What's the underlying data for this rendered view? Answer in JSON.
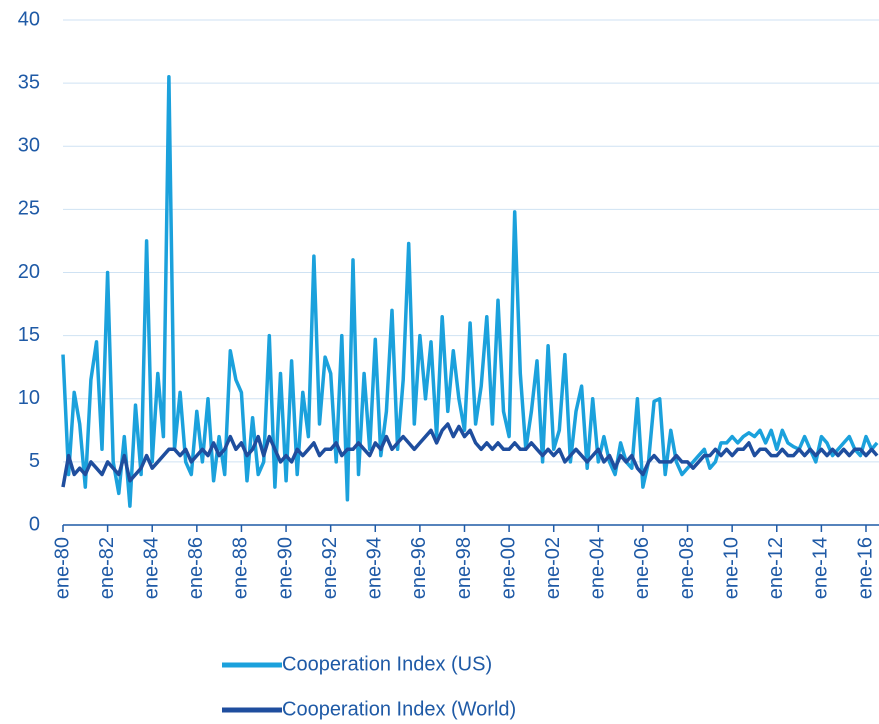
{
  "chart_data": {
    "type": "line",
    "x": [
      "1980-01",
      "1980-04",
      "1980-07",
      "1980-10",
      "1981-01",
      "1981-04",
      "1981-07",
      "1981-10",
      "1982-01",
      "1982-04",
      "1982-07",
      "1982-10",
      "1983-01",
      "1983-04",
      "1983-07",
      "1983-10",
      "1984-01",
      "1984-04",
      "1984-07",
      "1984-10",
      "1985-01",
      "1985-04",
      "1985-07",
      "1985-10",
      "1986-01",
      "1986-04",
      "1986-07",
      "1986-10",
      "1987-01",
      "1987-04",
      "1987-07",
      "1987-10",
      "1988-01",
      "1988-04",
      "1988-07",
      "1988-10",
      "1989-01",
      "1989-04",
      "1989-07",
      "1989-10",
      "1990-01",
      "1990-04",
      "1990-07",
      "1990-10",
      "1991-01",
      "1991-04",
      "1991-07",
      "1991-10",
      "1992-01",
      "1992-04",
      "1992-07",
      "1992-10",
      "1993-01",
      "1993-04",
      "1993-07",
      "1993-10",
      "1994-01",
      "1994-04",
      "1994-07",
      "1994-10",
      "1995-01",
      "1995-04",
      "1995-07",
      "1995-10",
      "1996-01",
      "1996-04",
      "1996-07",
      "1996-10",
      "1997-01",
      "1997-04",
      "1997-07",
      "1997-10",
      "1998-01",
      "1998-04",
      "1998-07",
      "1998-10",
      "1999-01",
      "1999-04",
      "1999-07",
      "1999-10",
      "2000-01",
      "2000-04",
      "2000-07",
      "2000-10",
      "2001-01",
      "2001-04",
      "2001-07",
      "2001-10",
      "2002-01",
      "2002-04",
      "2002-07",
      "2002-10",
      "2003-01",
      "2003-04",
      "2003-07",
      "2003-10",
      "2004-01",
      "2004-04",
      "2004-07",
      "2004-10",
      "2005-01",
      "2005-04",
      "2005-07",
      "2005-10",
      "2006-01",
      "2006-04",
      "2006-07",
      "2006-10",
      "2007-01",
      "2007-04",
      "2007-07",
      "2007-10",
      "2008-01",
      "2008-04",
      "2008-07",
      "2008-10",
      "2009-01",
      "2009-04",
      "2009-07",
      "2009-10",
      "2010-01",
      "2010-04",
      "2010-07",
      "2010-10",
      "2011-01",
      "2011-04",
      "2011-07",
      "2011-10",
      "2012-01",
      "2012-04",
      "2012-07",
      "2012-10",
      "2013-01",
      "2013-04",
      "2013-07",
      "2013-10",
      "2014-01",
      "2014-04",
      "2014-07",
      "2014-10",
      "2015-01",
      "2015-04",
      "2015-07",
      "2015-10",
      "2016-01",
      "2016-04",
      "2016-07"
    ],
    "series": [
      {
        "name": "Cooperation Index (US)",
        "color": "#1ba1dc",
        "values": [
          13.5,
          4,
          10.5,
          8,
          3,
          11.5,
          14.5,
          6,
          20,
          5,
          2.5,
          7,
          1.5,
          9.5,
          4,
          22.5,
          5,
          12,
          7,
          35.5,
          6,
          10.5,
          5,
          4,
          9,
          5,
          10,
          3.5,
          7,
          4,
          13.8,
          11.5,
          10.5,
          3.5,
          8.5,
          4,
          5,
          15,
          3,
          12,
          3.5,
          13,
          4,
          10.5,
          7,
          21.3,
          8,
          13.3,
          12,
          5,
          15,
          2,
          21,
          4,
          12,
          6,
          14.7,
          5.5,
          9,
          17,
          6,
          11.5,
          22.3,
          8,
          15,
          10,
          14.5,
          7,
          16.5,
          9,
          13.8,
          10,
          7.5,
          16,
          8,
          11,
          16.5,
          8,
          17.8,
          9,
          7,
          24.8,
          12,
          6,
          9,
          13,
          5,
          14.2,
          6,
          7.5,
          13.5,
          5,
          9,
          11,
          4.5,
          10,
          5,
          7,
          5,
          4,
          6.5,
          5,
          4.5,
          10,
          3,
          5,
          9.8,
          10,
          4,
          7.5,
          5,
          4,
          4.5,
          5,
          5.5,
          6,
          4.5,
          5,
          6.5,
          6.5,
          7,
          6.5,
          7,
          7.3,
          7,
          7.5,
          6.5,
          7.5,
          6,
          7.5,
          6.5,
          6.2,
          6,
          7,
          6,
          5,
          7,
          6.5,
          5.5,
          6,
          6.5,
          7,
          6,
          5.5,
          7,
          6,
          6.5
        ]
      },
      {
        "name": "Cooperation Index (World)",
        "color": "#1f4e9e",
        "values": [
          3,
          5.5,
          4,
          4.5,
          4,
          5,
          4.5,
          4,
          5,
          4.5,
          4,
          5.5,
          3.5,
          4,
          4.5,
          5.5,
          4.5,
          5,
          5.5,
          6,
          6,
          5.5,
          6,
          5,
          5.5,
          6,
          5.5,
          6.5,
          5.5,
          6,
          7,
          6,
          6.5,
          5.5,
          6,
          7,
          5.5,
          7,
          6,
          5,
          5.5,
          5,
          6,
          5.5,
          6,
          6.5,
          5.5,
          6,
          6,
          6.5,
          5.5,
          6,
          6,
          6.5,
          6,
          5.5,
          6.5,
          6,
          7,
          6,
          6.5,
          7,
          6.5,
          6,
          6.5,
          7,
          7.5,
          6.5,
          7.5,
          8,
          7,
          7.8,
          7,
          7.5,
          6.5,
          6,
          6.5,
          6,
          6.5,
          6,
          6,
          6.5,
          6,
          6,
          6.5,
          6,
          5.5,
          6,
          5.5,
          6,
          5,
          5.5,
          6,
          5.5,
          5,
          5.5,
          6,
          5,
          5.5,
          4.5,
          5.5,
          5,
          5.5,
          4.5,
          4,
          5,
          5.5,
          5,
          5,
          5,
          5.5,
          5,
          5,
          4.5,
          5,
          5.5,
          5.5,
          6,
          5.5,
          6,
          5.5,
          6,
          6,
          6.5,
          5.5,
          6,
          6,
          5.5,
          5.5,
          6,
          5.5,
          5.5,
          6,
          5.5,
          6,
          5.5,
          6,
          5.5,
          6,
          5.5,
          6,
          5.5,
          6,
          6,
          5.5,
          6,
          5.5
        ]
      }
    ],
    "xlim": [
      "1980-01",
      "2016-08"
    ],
    "xticks": [
      {
        "value": "1980-01",
        "label": "ene-80"
      },
      {
        "value": "1982-01",
        "label": "ene-82"
      },
      {
        "value": "1984-01",
        "label": "ene-84"
      },
      {
        "value": "1986-01",
        "label": "ene-86"
      },
      {
        "value": "1988-01",
        "label": "ene-88"
      },
      {
        "value": "1990-01",
        "label": "ene-90"
      },
      {
        "value": "1992-01",
        "label": "ene-92"
      },
      {
        "value": "1994-01",
        "label": "ene-94"
      },
      {
        "value": "1996-01",
        "label": "ene-96"
      },
      {
        "value": "1998-01",
        "label": "ene-98"
      },
      {
        "value": "2000-01",
        "label": "ene-00"
      },
      {
        "value": "2002-01",
        "label": "ene-02"
      },
      {
        "value": "2004-01",
        "label": "ene-04"
      },
      {
        "value": "2006-01",
        "label": "ene-06"
      },
      {
        "value": "2008-01",
        "label": "ene-08"
      },
      {
        "value": "2010-01",
        "label": "ene-10"
      },
      {
        "value": "2012-01",
        "label": "ene-12"
      },
      {
        "value": "2014-01",
        "label": "ene-14"
      },
      {
        "value": "2016-01",
        "label": "ene-16"
      }
    ],
    "ylim": [
      0,
      40
    ],
    "yticks": [
      0,
      5,
      10,
      15,
      20,
      25,
      30,
      35,
      40
    ],
    "grid": true,
    "legend": "bottom"
  }
}
